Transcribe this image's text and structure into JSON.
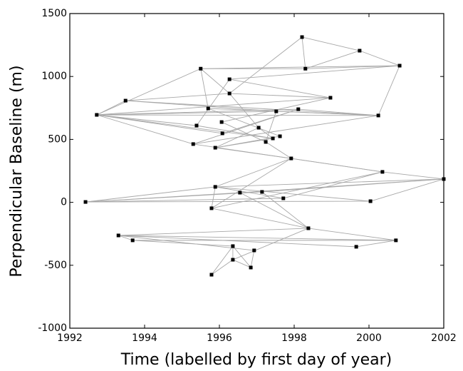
{
  "chart_data": {
    "type": "scatter",
    "xlabel": "Time (labelled by first day of year)",
    "ylabel": "Perpendicular Baseline (m)",
    "xlim": [
      1992,
      2002
    ],
    "xticks": [
      1992,
      1994,
      1996,
      1998,
      2000,
      2002
    ],
    "ylim": [
      -1000,
      1500
    ],
    "yticks": [
      -1000,
      -500,
      0,
      500,
      1000,
      1500
    ],
    "point_color": "#000000",
    "edge_color": "#a8a8a8",
    "x": [
      1998.21,
      1999.75,
      2000.82,
      1995.5,
      1998.3,
      1996.27,
      1996.27,
      1998.97,
      1993.49,
      1992.72,
      1995.7,
      1997.52,
      1998.11,
      2000.25,
      1996.06,
      1995.39,
      1997.05,
      1996.08,
      1997.62,
      1997.43,
      1997.24,
      1995.3,
      1995.89,
      1997.92,
      2000.36,
      2002.0,
      1995.89,
      1996.55,
      1997.14,
      1997.71,
      2000.04,
      1992.42,
      1995.79,
      1998.38,
      1993.3,
      1993.68,
      2000.72,
      1999.66,
      1996.36,
      1996.93,
      1996.36,
      1996.84,
      1995.79
    ],
    "y": [
      1313,
      1205,
      1086,
      1062,
      1062,
      978,
      865,
      831,
      808,
      695,
      746,
      723,
      740,
      690,
      638,
      610,
      593,
      548,
      525,
      508,
      480,
      463,
      434,
      349,
      242,
      185,
      123,
      77,
      83,
      32,
      9,
      3,
      -47,
      -206,
      -263,
      -302,
      -302,
      -353,
      -348,
      -382,
      -456,
      -518,
      -575
    ],
    "edges": [
      [
        0,
        1
      ],
      [
        0,
        4
      ],
      [
        0,
        6
      ],
      [
        1,
        2
      ],
      [
        1,
        4
      ],
      [
        2,
        4
      ],
      [
        2,
        13
      ],
      [
        3,
        4
      ],
      [
        3,
        2
      ],
      [
        3,
        9
      ],
      [
        3,
        6
      ],
      [
        3,
        10
      ],
      [
        5,
        2
      ],
      [
        5,
        7
      ],
      [
        5,
        15
      ],
      [
        6,
        7
      ],
      [
        6,
        8
      ],
      [
        6,
        16
      ],
      [
        7,
        9
      ],
      [
        7,
        14
      ],
      [
        8,
        9
      ],
      [
        8,
        13
      ],
      [
        8,
        11
      ],
      [
        9,
        11
      ],
      [
        9,
        12
      ],
      [
        9,
        13
      ],
      [
        9,
        15
      ],
      [
        9,
        17
      ],
      [
        9,
        19
      ],
      [
        9,
        21
      ],
      [
        10,
        13
      ],
      [
        10,
        18
      ],
      [
        11,
        13
      ],
      [
        12,
        13
      ],
      [
        12,
        21
      ],
      [
        14,
        20
      ],
      [
        15,
        19
      ],
      [
        16,
        22
      ],
      [
        17,
        12
      ],
      [
        18,
        22
      ],
      [
        20,
        23
      ],
      [
        21,
        13
      ],
      [
        21,
        24
      ],
      [
        22,
        23
      ],
      [
        22,
        19
      ],
      [
        23,
        24
      ],
      [
        23,
        26
      ],
      [
        23,
        32
      ],
      [
        24,
        25
      ],
      [
        26,
        25
      ],
      [
        27,
        25
      ],
      [
        28,
        25
      ],
      [
        29,
        24
      ],
      [
        31,
        27
      ],
      [
        31,
        28
      ],
      [
        31,
        30
      ],
      [
        31,
        26
      ],
      [
        31,
        29
      ],
      [
        26,
        30
      ],
      [
        27,
        33
      ],
      [
        28,
        33
      ],
      [
        32,
        33
      ],
      [
        32,
        26
      ],
      [
        33,
        36
      ],
      [
        33,
        34
      ],
      [
        33,
        40
      ],
      [
        34,
        36
      ],
      [
        34,
        37
      ],
      [
        34,
        35
      ],
      [
        35,
        36
      ],
      [
        35,
        38
      ],
      [
        34,
        39
      ],
      [
        38,
        40
      ],
      [
        38,
        41
      ],
      [
        39,
        41
      ],
      [
        40,
        41
      ],
      [
        42,
        38
      ],
      [
        42,
        40
      ],
      [
        37,
        36
      ],
      [
        26,
        29
      ],
      [
        30,
        25
      ],
      [
        32,
        24
      ],
      [
        11,
        20
      ],
      [
        16,
        19
      ]
    ]
  }
}
